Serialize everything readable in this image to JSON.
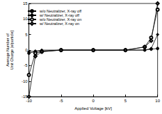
{
  "chart_data": {
    "type": "line",
    "x_label": "Applied Voltage [kV]",
    "y_label": "Average Number of\nUnit Charge [e/particle]",
    "x": [
      -10,
      -9,
      -8,
      -5,
      0,
      5,
      8,
      9,
      10
    ],
    "series": [
      {
        "name": "w/o Neutralizer, X-ray off",
        "color": "#000000",
        "marker": "circle",
        "values": [
          -1,
          -0.5,
          -0.3,
          0,
          0,
          0,
          0,
          0.3,
          0.5
        ]
      },
      {
        "name": "w/ Neutralizer, X-ray off",
        "color": "#000000",
        "marker": "diamond",
        "values": [
          -0.5,
          -0.3,
          0,
          0,
          0,
          0,
          0,
          0.5,
          5
        ]
      },
      {
        "name": "w/o Neutralizer, X-ray on",
        "color": "#000000",
        "marker": "open_circle",
        "values": [
          -8,
          -1,
          -0.5,
          0,
          0,
          0,
          1,
          4,
          13
        ]
      },
      {
        "name": "w/ Neutralizer, X-ray on",
        "color": "#000000",
        "marker": "open_diamond",
        "values": [
          -15,
          -2,
          -0.5,
          0,
          0,
          0,
          1,
          3,
          15
        ]
      }
    ],
    "xlim": [
      -10,
      10
    ],
    "xticks": [
      -10,
      -5,
      0,
      5,
      10
    ],
    "ylim": [
      -15,
      15
    ],
    "yticks": [
      -15,
      -10,
      -5,
      0,
      5,
      10,
      15
    ],
    "grid": false,
    "legend": "upper left"
  }
}
